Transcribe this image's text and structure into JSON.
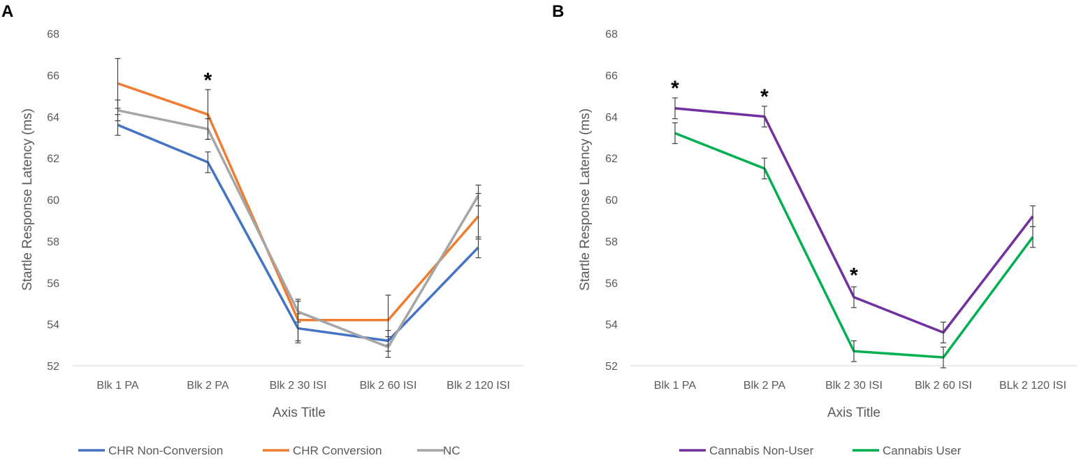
{
  "chart_data": [
    {
      "panel": "A",
      "type": "line",
      "xlabel": "Axis Title",
      "ylabel": "Startle Response Latency (ms)",
      "ylim": [
        52,
        68
      ],
      "yticks": [
        "52",
        "54",
        "56",
        "58",
        "60",
        "62",
        "64",
        "66",
        "68"
      ],
      "categories": [
        "Blk 1 PA",
        "Blk 2 PA",
        "Blk 2 30 ISI",
        "Blk 2 60 ISI",
        "Blk 2 120 ISI"
      ],
      "series": [
        {
          "name": "CHR Non-Conversion",
          "color": "#4472c4",
          "values": [
            63.6,
            61.8,
            53.8,
            53.2,
            57.7
          ],
          "err": [
            0.5,
            0.5,
            0.7,
            0.5,
            0.5
          ]
        },
        {
          "name": "CHR Conversion",
          "color": "#ed7d31",
          "values": [
            65.6,
            64.1,
            54.2,
            54.2,
            59.2
          ],
          "err": [
            1.2,
            1.2,
            1.0,
            1.2,
            1.1
          ]
        },
        {
          "name": "NC",
          "color": "#a5a5a5",
          "values": [
            64.3,
            63.4,
            54.6,
            52.9,
            60.2
          ],
          "err": [
            0.5,
            0.5,
            0.5,
            0.5,
            0.5
          ]
        }
      ],
      "annotations": [
        {
          "category": "Blk 2 PA",
          "text": "*",
          "y": 65.9
        }
      ]
    },
    {
      "panel": "B",
      "type": "line",
      "xlabel": "Axis Title",
      "ylabel": "Startle Response Latency (ms)",
      "ylim": [
        52,
        68
      ],
      "yticks": [
        "52",
        "54",
        "56",
        "58",
        "60",
        "62",
        "64",
        "66",
        "68"
      ],
      "categories": [
        "Blk 1 PA",
        "Blk 2 PA",
        "Blk 2 30 ISI",
        "Blk 2 60 ISI",
        "BLk 2 120 ISI"
      ],
      "series": [
        {
          "name": "Cannabis Non-User",
          "color": "#7030a0",
          "values": [
            64.4,
            64.0,
            55.3,
            53.6,
            59.2
          ],
          "err": [
            0.5,
            0.5,
            0.5,
            0.5,
            0.5
          ]
        },
        {
          "name": "Cannabis User",
          "color": "#00b050",
          "values": [
            63.2,
            61.5,
            52.7,
            52.4,
            58.2
          ],
          "err": [
            0.5,
            0.5,
            0.5,
            0.5,
            0.5
          ]
        }
      ],
      "annotations": [
        {
          "category": "Blk 1 PA",
          "text": "*",
          "y": 65.5
        },
        {
          "category": "Blk 2 PA",
          "text": "*",
          "y": 65.1
        },
        {
          "category": "Blk 2 30 ISI",
          "text": "*",
          "y": 56.5
        }
      ]
    }
  ]
}
